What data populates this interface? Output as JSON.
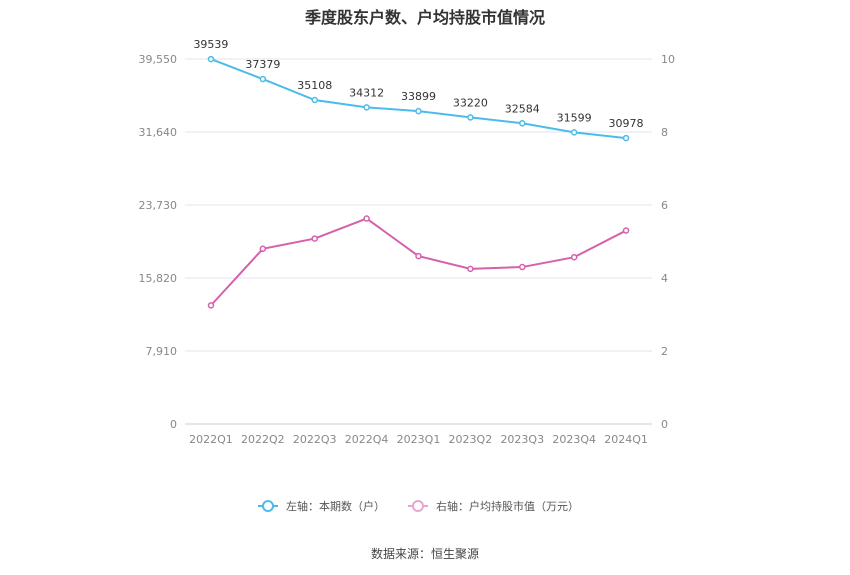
{
  "title": "季度股东户数、户均持股市值情况",
  "source": "数据来源：恒生聚源",
  "colors": {
    "left_series": "#4dbbea",
    "right_series": "#d660ac",
    "grid": "#e6e6ee",
    "axis_text": "#888888"
  },
  "legend": {
    "left": "左轴：本期数（户）",
    "right": "右轴：户均持股市值（万元）"
  },
  "chart_data": {
    "type": "line",
    "categories": [
      "2022Q1",
      "2022Q2",
      "2022Q3",
      "2022Q4",
      "2023Q1",
      "2023Q2",
      "2023Q3",
      "2023Q4",
      "2024Q1"
    ],
    "left_axis": {
      "ylim": [
        0,
        39550
      ],
      "ticks": [
        "0",
        "7,910",
        "15,820",
        "23,730",
        "31,640",
        "39,550"
      ],
      "tick_values": [
        0,
        7910,
        15820,
        23730,
        31640,
        39550
      ]
    },
    "right_axis": {
      "ylim": [
        0,
        10
      ],
      "ticks": [
        "0",
        "2",
        "4",
        "6",
        "8",
        "10"
      ],
      "tick_values": [
        0,
        2,
        4,
        6,
        8,
        10
      ]
    },
    "series": [
      {
        "name": "本期数（户）",
        "axis": "left",
        "values": [
          39539,
          37379,
          35108,
          34312,
          33899,
          33220,
          32584,
          31599,
          30978
        ],
        "labels": [
          "39539",
          "37379",
          "35108",
          "34312",
          "33899",
          "33220",
          "32584",
          "31599",
          "30978"
        ]
      },
      {
        "name": "户均持股市值（万元）",
        "axis": "right",
        "values": [
          3.25,
          4.8,
          5.08,
          5.63,
          4.6,
          4.25,
          4.3,
          4.57,
          5.3
        ]
      }
    ]
  }
}
